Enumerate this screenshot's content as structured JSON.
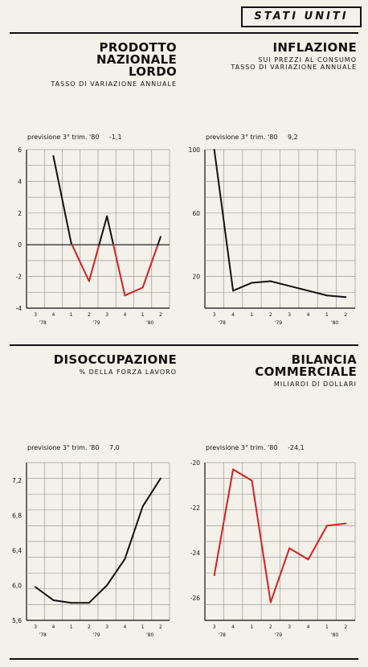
{
  "header": {
    "country": "STATI UNITI"
  },
  "panels": [
    {
      "title_lines": [
        "PRODOTTO",
        "NAZIONALE",
        "LORDO"
      ],
      "subtitle_lines": [
        "TASSO DI VARIAZIONE ANNUALE"
      ]
    },
    {
      "title_lines": [
        "INFLAZIONE"
      ],
      "subtitle_lines": [
        "SUI PREZZI AL CONSUMO",
        "TASSO DI VARIAZIONE ANNUALE"
      ]
    },
    {
      "title_lines": [
        "DISOCCUPAZIONE"
      ],
      "subtitle_lines": [
        "% DELLA FORZA LAVORO"
      ]
    },
    {
      "title_lines": [
        "BILANCIA",
        "COMMERCIALE"
      ],
      "subtitle_lines": [
        "MILIARDI DI DOLLARI"
      ]
    }
  ],
  "colors": {
    "line": "#111111",
    "accent": "#d62020",
    "grid": "#9a9a9a"
  },
  "chart_data": [
    {
      "type": "line",
      "forecast_label": "previsione 3° trim. '80",
      "forecast_value": "-1,1",
      "categories": [
        "3",
        "4",
        "1",
        "2",
        "3",
        "4",
        "1",
        "2"
      ],
      "years": [
        "'78",
        "'79",
        "'80"
      ],
      "ylim": [
        -4,
        6
      ],
      "ytick_values": [
        6,
        4,
        2,
        0,
        -2,
        -4
      ],
      "ytick_labels": [
        "6",
        "4",
        "2",
        "0",
        "-2",
        "-4"
      ],
      "zero_line": true,
      "series": [
        {
          "x": [
            1,
            2,
            3,
            4,
            5,
            6,
            7
          ],
          "values": [
            5.6,
            0.1,
            -2.3,
            1.8,
            -3.2,
            -2.7,
            0.5
          ]
        }
      ],
      "color_rule": "red where values fall below zero"
    },
    {
      "type": "line",
      "forecast_label": "previsione 3° trim. '80",
      "forecast_value": "9,2",
      "categories": [
        "3",
        "4",
        "1",
        "2",
        "3",
        "4",
        "1",
        "2"
      ],
      "years": [
        "'78",
        "'79",
        "'80"
      ],
      "ylim": [
        0,
        100
      ],
      "ytick_values": [
        100,
        60,
        20
      ],
      "ytick_labels": [
        "100",
        "60",
        "20"
      ],
      "series": [
        {
          "x": [
            0,
            1,
            2,
            3,
            4,
            5,
            6,
            7
          ],
          "values": [
            100,
            11,
            16,
            17,
            14,
            11,
            8,
            7
          ]
        }
      ]
    },
    {
      "type": "line",
      "forecast_label": "previsione 3° trim. '80",
      "forecast_value": "7,0",
      "categories": [
        "3",
        "4",
        "1",
        "2",
        "3",
        "4",
        "1",
        "2"
      ],
      "years": [
        "'78",
        "'79",
        "'80"
      ],
      "ylim": [
        5.6,
        7.4
      ],
      "ytick_values": [
        7.2,
        6.8,
        6.4,
        6.0,
        5.6
      ],
      "ytick_labels": [
        "7,2",
        "6,8",
        "6,4",
        "6,0",
        "5,6"
      ],
      "series": [
        {
          "x": [
            0,
            1,
            2,
            3,
            4,
            5,
            6,
            7
          ],
          "values": [
            5.98,
            5.83,
            5.8,
            5.8,
            6.0,
            6.3,
            6.9,
            7.22
          ]
        }
      ]
    },
    {
      "type": "line",
      "forecast_label": "previsione 3° trim. '80",
      "forecast_value": "-24,1",
      "categories": [
        "3",
        "4",
        "1",
        "2",
        "3",
        "4",
        "1",
        "2"
      ],
      "years": [
        "'78",
        "'79",
        "'80"
      ],
      "ylim": [
        -27,
        -20
      ],
      "ytick_values": [
        -20,
        -22,
        -24,
        -26
      ],
      "ytick_labels": [
        "-20",
        "-22",
        "-24",
        "-26"
      ],
      "series": [
        {
          "x": [
            0,
            1,
            2,
            3,
            4,
            5,
            6,
            7
          ],
          "values": [
            -25.0,
            -20.3,
            -20.8,
            -26.2,
            -23.8,
            -24.3,
            -22.8,
            -22.7
          ]
        }
      ]
    }
  ]
}
